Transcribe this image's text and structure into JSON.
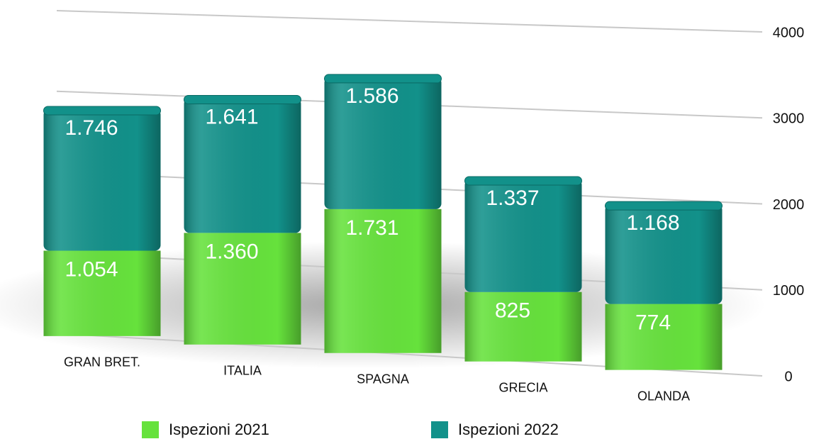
{
  "chart_data": {
    "type": "bar",
    "stacked": true,
    "categories": [
      "GRAN BRET.",
      "ITALIA",
      "SPAGNA",
      "GRECIA",
      "OLANDA"
    ],
    "series": [
      {
        "name": "Ispezioni 2021",
        "color": "#66e23c",
        "values": [
          1054,
          1360,
          1731,
          825,
          774
        ],
        "value_labels": [
          "1.054",
          "1.360",
          "1.731",
          "825",
          "774"
        ]
      },
      {
        "name": "Ispezioni 2022",
        "color": "#12918a",
        "values": [
          1746,
          1641,
          1586,
          1337,
          1168
        ],
        "value_labels": [
          "1.746",
          "1.641",
          "1.586",
          "1.337",
          "1.168"
        ]
      }
    ],
    "ylim": [
      0,
      4000
    ],
    "yticks": [
      0,
      1000,
      2000,
      3000,
      4000
    ],
    "grid": true,
    "legend": "bottom"
  }
}
